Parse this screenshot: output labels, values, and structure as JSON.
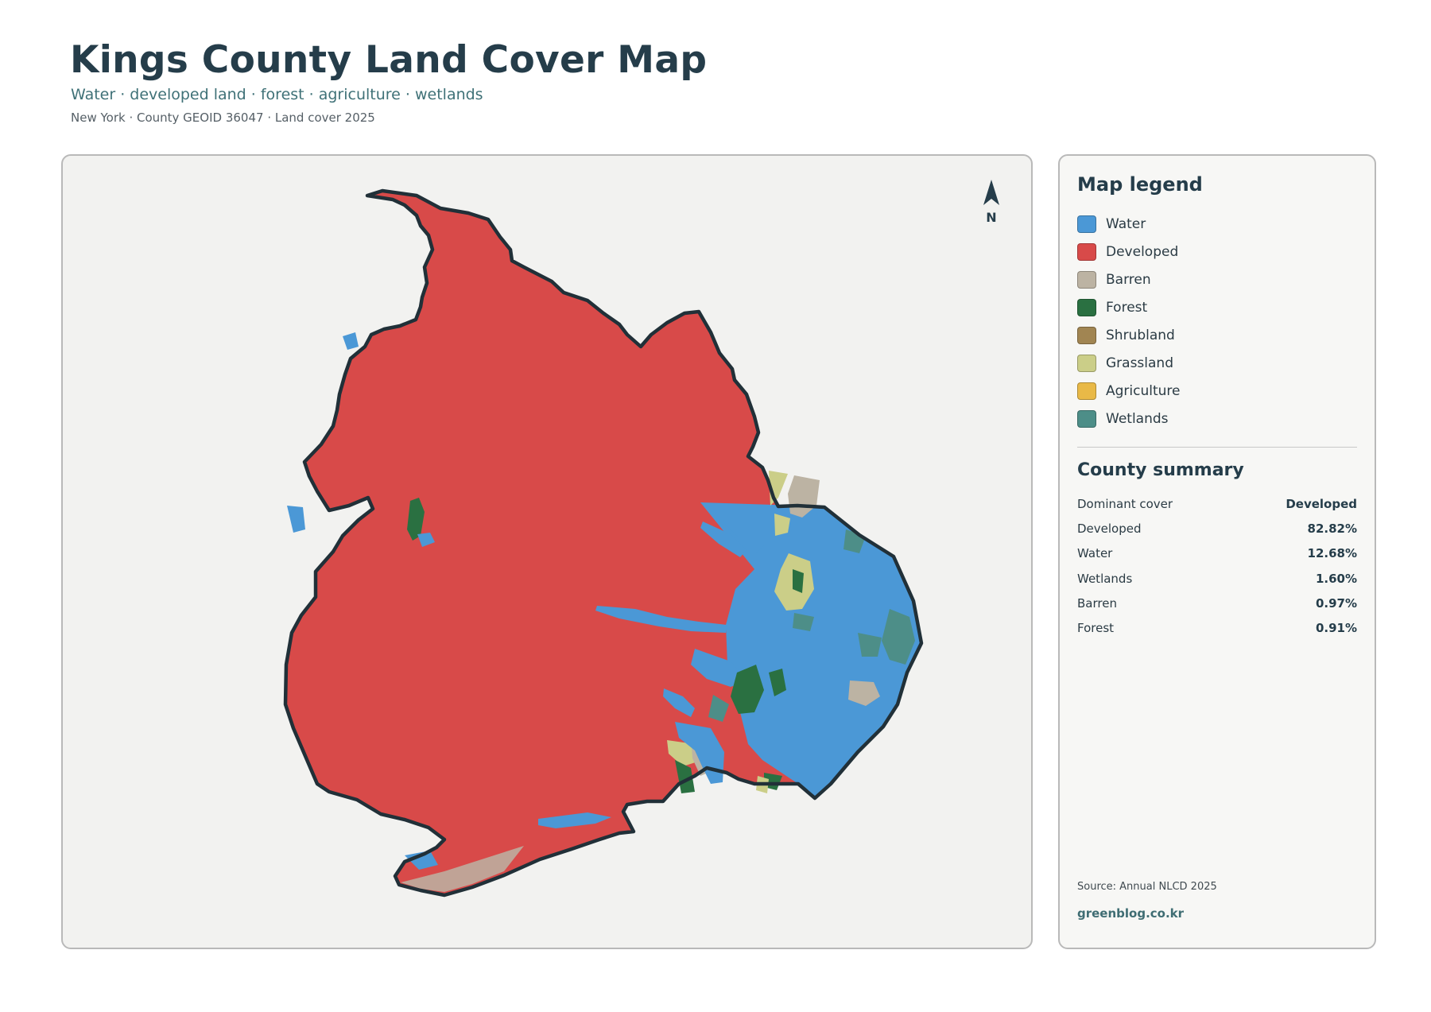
{
  "header": {
    "title": "Kings County Land Cover Map",
    "subtitle": "Water · developed land · forest · agriculture · wetlands",
    "meta": "New York · County GEOID 36047 · Land cover 2025"
  },
  "map": {
    "north_label": "N",
    "colors": {
      "water": "#4b98d6",
      "developed": "#d84a49",
      "barren": "#bcb3a3",
      "forest": "#2a7041",
      "shrubland": "#a18552",
      "grassland": "#cbce88",
      "agriculture": "#e9b947",
      "wetlands": "#4d8e88",
      "boundary": "#213038",
      "background": "#f2f2f0"
    }
  },
  "legend": {
    "title": "Map legend",
    "items": [
      {
        "label": "Water",
        "color": "#4b98d6"
      },
      {
        "label": "Developed",
        "color": "#d84a49"
      },
      {
        "label": "Barren",
        "color": "#bcb3a3"
      },
      {
        "label": "Forest",
        "color": "#2a7041"
      },
      {
        "label": "Shrubland",
        "color": "#a18552"
      },
      {
        "label": "Grassland",
        "color": "#cbce88"
      },
      {
        "label": "Agriculture",
        "color": "#e9b947"
      },
      {
        "label": "Wetlands",
        "color": "#4d8e88"
      }
    ]
  },
  "summary": {
    "title": "County summary",
    "rows": [
      {
        "label": "Dominant cover",
        "value": "Developed"
      },
      {
        "label": "Developed",
        "value": "82.82%"
      },
      {
        "label": "Water",
        "value": "12.68%"
      },
      {
        "label": "Wetlands",
        "value": "1.60%"
      },
      {
        "label": "Barren",
        "value": "0.97%"
      },
      {
        "label": "Forest",
        "value": "0.91%"
      }
    ]
  },
  "footer": {
    "source": "Source: Annual NLCD 2025",
    "site": "greenblog.co.kr"
  }
}
